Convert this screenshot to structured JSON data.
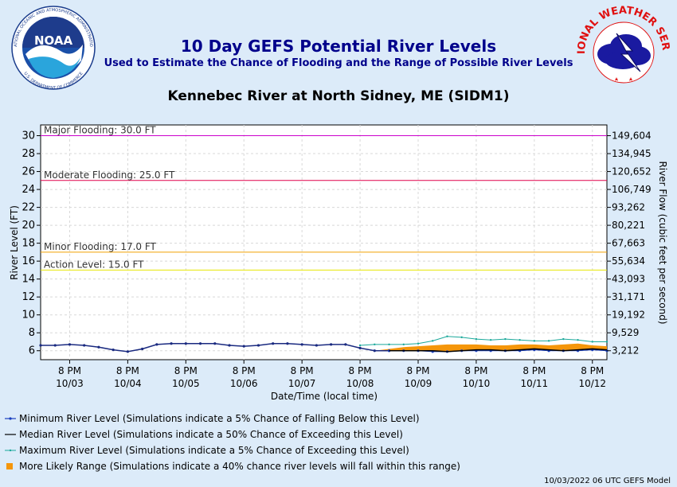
{
  "header": {
    "title": "10 Day GEFS Potential River Levels",
    "subtitle": "Used to Estimate the Chance of Flooding and the Range of Possible River Levels",
    "station": "Kennebec River at North Sidney, ME (SIDM1)"
  },
  "logos": {
    "noaa_text": "NOAA",
    "noaa_ring": "NATIONAL OCEANIC AND ATMOSPHERIC ADMINISTRATION",
    "noaa_ring_bottom": "U.S. DEPARTMENT OF COMMERCE",
    "nws_ring": "NATIONAL WEATHER SERVICE"
  },
  "chart_data": {
    "type": "line",
    "xlabel": "Date/Time (local time)",
    "ylabel": "River Level (FT)",
    "y2label": "River Flow (cubic feet per second)",
    "ylim": [
      5,
      31.2
    ],
    "yticks": [
      6,
      8,
      10,
      12,
      14,
      16,
      18,
      20,
      22,
      24,
      26,
      28,
      30
    ],
    "y2ticks": [
      {
        "level": 30,
        "label": "149,604"
      },
      {
        "level": 28,
        "label": "134,945"
      },
      {
        "level": 26,
        "label": "120,652"
      },
      {
        "level": 24,
        "label": "106,749"
      },
      {
        "level": 22,
        "label": "93,262"
      },
      {
        "level": 20,
        "label": "80,221"
      },
      {
        "level": 18,
        "label": "67,663"
      },
      {
        "level": 16,
        "label": "55,634"
      },
      {
        "level": 14,
        "label": "43,093"
      },
      {
        "level": 12,
        "label": "31,171"
      },
      {
        "level": 10,
        "label": "19,192"
      },
      {
        "level": 8,
        "label": "9,529"
      },
      {
        "level": 6,
        "label": "3,212"
      }
    ],
    "x_tick_labels": [
      [
        "8 PM",
        "10/03"
      ],
      [
        "8 PM",
        "10/04"
      ],
      [
        "8 PM",
        "10/05"
      ],
      [
        "8 PM",
        "10/06"
      ],
      [
        "8 PM",
        "10/07"
      ],
      [
        "8 PM",
        "10/08"
      ],
      [
        "8 PM",
        "10/09"
      ],
      [
        "8 PM",
        "10/10"
      ],
      [
        "8 PM",
        "10/11"
      ],
      [
        "8 PM",
        "10/12"
      ]
    ],
    "x_start_offset_days": -0.5,
    "x_end_offset_days": 9.25,
    "grid": true,
    "thresholds": [
      {
        "name": "Major Flooding: 30.0 FT",
        "value": 30.0,
        "color": "#cc00cc"
      },
      {
        "name": "Moderate Flooding: 25.0 FT",
        "value": 25.0,
        "color": "#e0004a"
      },
      {
        "name": "Minor Flooding: 17.0 FT",
        "value": 17.0,
        "color": "#f0a000"
      },
      {
        "name": "Action Level: 15.0 FT",
        "value": 15.0,
        "color": "#e6e600"
      }
    ],
    "observed": {
      "x": [
        -0.5,
        -0.25,
        0,
        0.25,
        0.5,
        0.75,
        1,
        1.25,
        1.5,
        1.75,
        2,
        2.25,
        2.5,
        2.75,
        3,
        3.25,
        3.5,
        3.75,
        4,
        4.25,
        4.5,
        4.75,
        5,
        5.25,
        5.5
      ],
      "y": [
        6.6,
        6.6,
        6.7,
        6.6,
        6.4,
        6.1,
        5.9,
        6.2,
        6.7,
        6.8,
        6.8,
        6.8,
        6.8,
        6.6,
        6.5,
        6.6,
        6.8,
        6.8,
        6.7,
        6.6,
        6.7,
        6.7,
        6.3,
        6.0,
        6.0
      ]
    },
    "series": [
      {
        "name": "Minimum River Level (Simulations indicate a 5% Chance of Falling Below this Level)",
        "color": "#1a3fbf",
        "x": [
          5.5,
          5.75,
          6,
          6.25,
          6.5,
          6.75,
          7,
          7.25,
          7.5,
          7.75,
          8,
          8.25,
          8.5,
          8.75,
          9,
          9.25
        ],
        "y": [
          6.0,
          6.0,
          6.0,
          5.9,
          5.9,
          6.0,
          6.0,
          6.0,
          6.0,
          6.0,
          6.1,
          6.0,
          6.0,
          6.0,
          6.1,
          6.0
        ]
      },
      {
        "name": "Median River Level (Simulations indicate a 50% Chance of Exceeding this Level)",
        "color": "#000000",
        "x": [
          5.5,
          5.75,
          6,
          6.25,
          6.5,
          6.75,
          7,
          7.25,
          7.5,
          7.75,
          8,
          8.25,
          8.5,
          8.75,
          9,
          9.25
        ],
        "y": [
          6.0,
          6.0,
          6.0,
          6.0,
          5.9,
          6.0,
          6.1,
          6.1,
          6.0,
          6.1,
          6.2,
          6.1,
          6.0,
          6.1,
          6.2,
          6.1
        ]
      },
      {
        "name": "Maximum River Level (Simulations indicate a 5% Chance of Exceeding this Level)",
        "color": "#1aa89a",
        "x": [
          5.0,
          5.25,
          5.5,
          5.75,
          6,
          6.25,
          6.5,
          6.75,
          7,
          7.25,
          7.5,
          7.75,
          8,
          8.25,
          8.5,
          8.75,
          9,
          9.25
        ],
        "y": [
          6.6,
          6.7,
          6.7,
          6.7,
          6.8,
          7.1,
          7.6,
          7.5,
          7.3,
          7.2,
          7.3,
          7.2,
          7.1,
          7.1,
          7.3,
          7.2,
          7.0,
          7.0
        ]
      }
    ],
    "likely_range": {
      "name": "More Likely Range (Simulations indicate a 40% chance river levels will fall within this range)",
      "color": "#f5960a",
      "x": [
        5.25,
        5.5,
        5.75,
        6,
        6.25,
        6.5,
        6.75,
        7,
        7.25,
        7.5,
        7.75,
        8,
        8.25,
        8.5,
        8.75,
        9,
        9.25
      ],
      "low": [
        6.0,
        6.0,
        6.0,
        6.0,
        6.0,
        5.95,
        6.0,
        6.1,
        6.1,
        6.05,
        6.1,
        6.2,
        6.1,
        6.05,
        6.1,
        6.2,
        6.1
      ],
      "high": [
        6.0,
        6.2,
        6.4,
        6.5,
        6.6,
        6.7,
        6.7,
        6.7,
        6.6,
        6.6,
        6.7,
        6.7,
        6.6,
        6.7,
        6.8,
        6.6,
        6.5
      ]
    }
  },
  "footer": "10/03/2022 06 UTC GEFS Model"
}
